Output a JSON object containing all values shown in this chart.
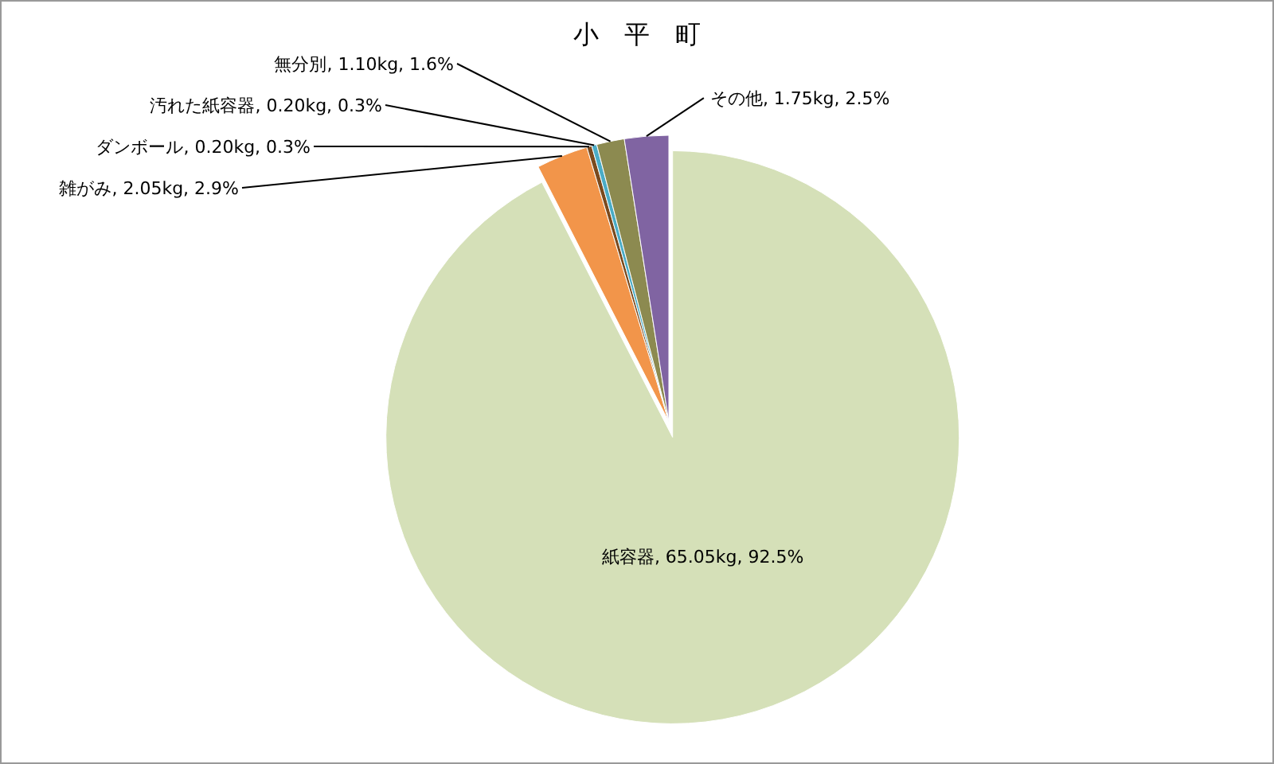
{
  "chart_data": {
    "type": "pie",
    "title": "小　平　町",
    "categories": [
      "紙容器",
      "雑がみ",
      "ダンボール",
      "汚れた紙容器",
      "無分別",
      "その他"
    ],
    "values": [
      65.05,
      2.05,
      0.2,
      0.2,
      1.1,
      1.75
    ],
    "value_labels": [
      ", 65.05kg, 92.5%",
      ", 2.05kg, 2.9%",
      ", 0.20kg, 0.3%",
      ", 0.20kg, 0.3%",
      ", 1.10kg, 1.6%",
      ", 1.75kg, 2.5%"
    ],
    "colors": [
      "#d5e0b8",
      "#f2954a",
      "#7a4a1e",
      "#4bacc6",
      "#8c8a50",
      "#8064a2"
    ]
  }
}
